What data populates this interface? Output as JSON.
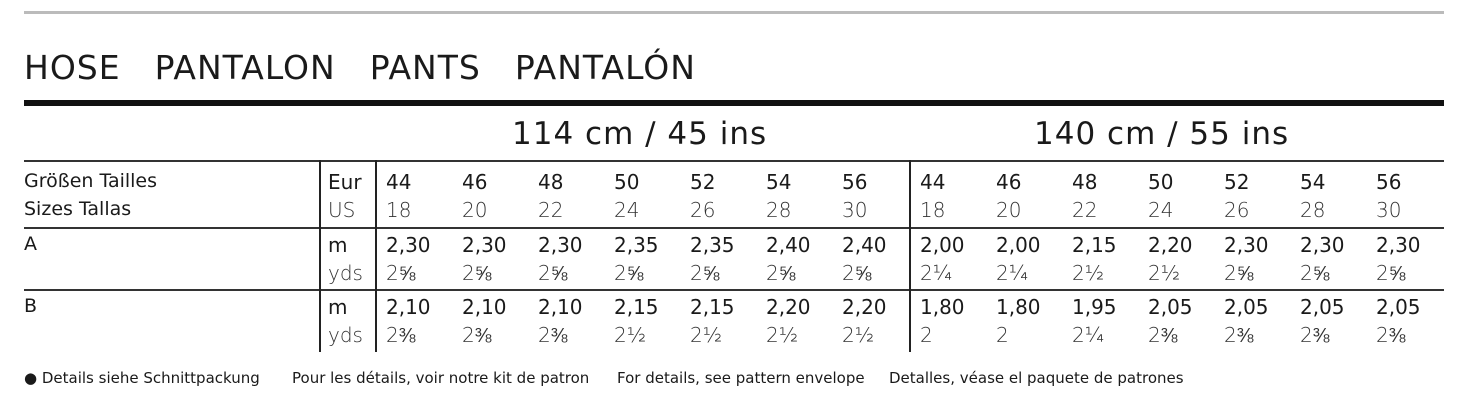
{
  "title": [
    "HOSE",
    "PANTALON",
    "PANTS",
    "PANTALÓN"
  ],
  "widths": [
    "114 cm / 45 ins",
    "140 cm / 55 ins"
  ],
  "size_labels": {
    "line1": "Größen Tailles",
    "line2": "Sizes Tallas",
    "eur": "Eur",
    "us": "US"
  },
  "eur_sizes": [
    "44",
    "46",
    "48",
    "50",
    "52",
    "54",
    "56"
  ],
  "us_sizes": [
    "18",
    "20",
    "22",
    "24",
    "26",
    "28",
    "30"
  ],
  "rows": [
    {
      "view": "A",
      "unit_m": "m",
      "unit_yds": "yds",
      "w114_m": [
        "2,30",
        "2,30",
        "2,30",
        "2,35",
        "2,35",
        "2,40",
        "2,40"
      ],
      "w114_yds": [
        "2⅝",
        "2⅝",
        "2⅝",
        "2⅝",
        "2⅝",
        "2⅝",
        "2⅝"
      ],
      "w140_m": [
        "2,00",
        "2,00",
        "2,15",
        "2,20",
        "2,30",
        "2,30",
        "2,30"
      ],
      "w140_yds": [
        "2¼",
        "2¼",
        "2½",
        "2½",
        "2⅝",
        "2⅝",
        "2⅝"
      ]
    },
    {
      "view": "B",
      "unit_m": "m",
      "unit_yds": "yds",
      "w114_m": [
        "2,10",
        "2,10",
        "2,10",
        "2,15",
        "2,15",
        "2,20",
        "2,20"
      ],
      "w114_yds": [
        "2⅜",
        "2⅜",
        "2⅜",
        "2½",
        "2½",
        "2½",
        "2½"
      ],
      "w140_m": [
        "1,80",
        "1,80",
        "1,95",
        "2,05",
        "2,05",
        "2,05",
        "2,05"
      ],
      "w140_yds": [
        "2",
        "2",
        "2¼",
        "2⅜",
        "2⅜",
        "2⅜",
        "2⅜"
      ]
    }
  ],
  "footer": [
    "● Details siehe Schnittpackung",
    "Pour les détails, voir notre kit de patron",
    "For details, see pattern envelope",
    "Detalles, véase el paquete de patrones"
  ]
}
